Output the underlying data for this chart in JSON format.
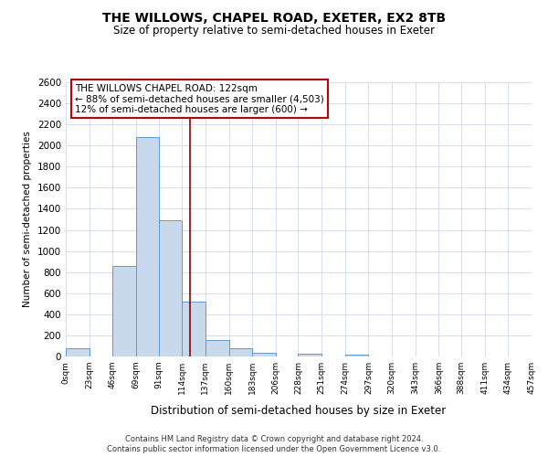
{
  "title": "THE WILLOWS, CHAPEL ROAD, EXETER, EX2 8TB",
  "subtitle": "Size of property relative to semi-detached houses in Exeter",
  "xlabel": "Distribution of semi-detached houses by size in Exeter",
  "ylabel": "Number of semi-detached properties",
  "footnote1": "Contains HM Land Registry data © Crown copyright and database right 2024.",
  "footnote2": "Contains public sector information licensed under the Open Government Licence v3.0.",
  "bar_edges": [
    0,
    23,
    46,
    69,
    91,
    114,
    137,
    160,
    183,
    206,
    228,
    251,
    274,
    297,
    320,
    343,
    366,
    388,
    411,
    434,
    457
  ],
  "bar_heights": [
    75,
    0,
    855,
    2080,
    1293,
    520,
    160,
    75,
    35,
    0,
    30,
    0,
    20,
    0,
    0,
    0,
    0,
    0,
    0,
    0
  ],
  "bar_color": "#c8d9eb",
  "bar_edgecolor": "#5b9bd5",
  "property_size": 122,
  "property_line_color": "#8b0000",
  "annotation_title": "THE WILLOWS CHAPEL ROAD: 122sqm",
  "annotation_line1": "← 88% of semi-detached houses are smaller (4,503)",
  "annotation_line2": "12% of semi-detached houses are larger (600) →",
  "annotation_box_edgecolor": "#c00000",
  "ylim": [
    0,
    2600
  ],
  "yticks": [
    0,
    200,
    400,
    600,
    800,
    1000,
    1200,
    1400,
    1600,
    1800,
    2000,
    2200,
    2400,
    2600
  ],
  "xtick_labels": [
    "0sqm",
    "23sqm",
    "46sqm",
    "69sqm",
    "91sqm",
    "114sqm",
    "137sqm",
    "160sqm",
    "183sqm",
    "206sqm",
    "228sqm",
    "251sqm",
    "274sqm",
    "297sqm",
    "320sqm",
    "343sqm",
    "366sqm",
    "388sqm",
    "411sqm",
    "434sqm",
    "457sqm"
  ],
  "background_color": "#ffffff",
  "grid_color": "#d0d8e8"
}
